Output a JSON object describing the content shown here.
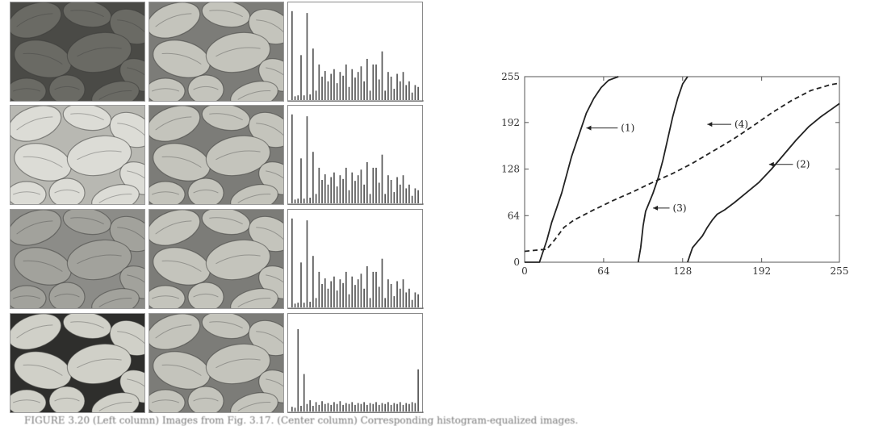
{
  "figure": {
    "image_rows": [
      {
        "input_tone": "dark",
        "input_bg": "#4a4a46",
        "input_bean": "#6a6a64",
        "output_bg": "#7c7c78",
        "output_bean": "#c4c4bc"
      },
      {
        "input_tone": "light",
        "input_bg": "#b8b8b2",
        "input_bean": "#dcdcd6",
        "output_bg": "#7c7c78",
        "output_bean": "#c4c4bc"
      },
      {
        "input_tone": "low-contrast",
        "input_bg": "#8c8c88",
        "input_bean": "#a2a29c",
        "output_bg": "#7c7c78",
        "output_bean": "#c4c4bc"
      },
      {
        "input_tone": "high-contrast",
        "input_bg": "#2e2e2c",
        "input_bean": "#d0d0c8",
        "output_bg": "#7c7c78",
        "output_bean": "#c4c4bc"
      }
    ],
    "histograms": [
      [
        0.95,
        0.04,
        0.05,
        0.48,
        0.05,
        0.93,
        0.06,
        0.55,
        0.1,
        0.38,
        0.25,
        0.31,
        0.2,
        0.28,
        0.33,
        0.18,
        0.3,
        0.26,
        0.38,
        0.14,
        0.33,
        0.24,
        0.3,
        0.36,
        0.2,
        0.44,
        0.1,
        0.38,
        0.38,
        0.22,
        0.52,
        0.1,
        0.3,
        0.25,
        0.12,
        0.28,
        0.2,
        0.3,
        0.16,
        0.2,
        0.08,
        0.16,
        0.14
      ],
      [
        0.95,
        0.04,
        0.05,
        0.48,
        0.05,
        0.93,
        0.06,
        0.55,
        0.1,
        0.38,
        0.25,
        0.31,
        0.2,
        0.28,
        0.33,
        0.18,
        0.3,
        0.26,
        0.38,
        0.14,
        0.33,
        0.24,
        0.3,
        0.36,
        0.2,
        0.44,
        0.1,
        0.38,
        0.38,
        0.22,
        0.52,
        0.1,
        0.3,
        0.25,
        0.12,
        0.28,
        0.2,
        0.3,
        0.16,
        0.2,
        0.08,
        0.16,
        0.14
      ],
      [
        0.95,
        0.04,
        0.05,
        0.48,
        0.05,
        0.93,
        0.06,
        0.55,
        0.1,
        0.38,
        0.25,
        0.31,
        0.2,
        0.28,
        0.33,
        0.18,
        0.3,
        0.26,
        0.38,
        0.14,
        0.33,
        0.24,
        0.3,
        0.36,
        0.2,
        0.44,
        0.1,
        0.38,
        0.38,
        0.22,
        0.52,
        0.1,
        0.3,
        0.25,
        0.12,
        0.28,
        0.2,
        0.3,
        0.16,
        0.2,
        0.08,
        0.16,
        0.14
      ],
      [
        0.05,
        0.04,
        0.88,
        0.06,
        0.4,
        0.08,
        0.12,
        0.06,
        0.1,
        0.07,
        0.11,
        0.08,
        0.09,
        0.07,
        0.1,
        0.08,
        0.11,
        0.07,
        0.09,
        0.08,
        0.1,
        0.07,
        0.09,
        0.08,
        0.1,
        0.07,
        0.09,
        0.08,
        0.1,
        0.07,
        0.09,
        0.08,
        0.1,
        0.07,
        0.09,
        0.08,
        0.1,
        0.07,
        0.09,
        0.08,
        0.1,
        0.09,
        0.45
      ]
    ],
    "caption": "FIGURE 3.20 (Left column) Images from Fig. 3.17. (Center column) Corresponding histogram-equalized images."
  },
  "chart_data": {
    "type": "line",
    "title": "",
    "xlabel": "",
    "ylabel": "",
    "xlim": [
      0,
      255
    ],
    "ylim": [
      0,
      255
    ],
    "xticks": [
      "0",
      "64",
      "128",
      "192",
      "255"
    ],
    "yticks": [
      "0",
      "64",
      "128",
      "192",
      "255"
    ],
    "grid": false,
    "series": [
      {
        "label": "(1)",
        "style": "solid",
        "x": [
          0,
          12,
          14,
          18,
          22,
          24,
          26,
          30,
          34,
          38,
          42,
          46,
          50,
          56,
          62,
          68,
          76
        ],
        "y": [
          0,
          0,
          10,
          30,
          55,
          65,
          75,
          95,
          120,
          145,
          165,
          185,
          205,
          225,
          240,
          250,
          255
        ]
      },
      {
        "label": "(2)",
        "style": "solid",
        "x": [
          132,
          134,
          136,
          140,
          144,
          148,
          152,
          156,
          162,
          170,
          180,
          190,
          200,
          210,
          220,
          230,
          240,
          250,
          255
        ],
        "y": [
          0,
          10,
          20,
          28,
          36,
          48,
          58,
          66,
          72,
          82,
          96,
          110,
          128,
          148,
          168,
          186,
          200,
          212,
          218
        ]
      },
      {
        "label": "(3)",
        "style": "solid",
        "x": [
          92,
          94,
          96,
          98,
          100,
          104,
          108,
          112,
          116,
          120,
          124,
          128,
          132
        ],
        "y": [
          0,
          20,
          50,
          70,
          78,
          95,
          115,
          140,
          170,
          200,
          225,
          245,
          255
        ]
      },
      {
        "label": "(4)",
        "style": "dashed",
        "x": [
          0,
          18,
          24,
          32,
          40,
          56,
          72,
          88,
          104,
          120,
          136,
          152,
          168,
          184,
          200,
          216,
          232,
          248,
          255
        ],
        "y": [
          15,
          18,
          30,
          48,
          58,
          72,
          85,
          97,
          110,
          122,
          136,
          152,
          168,
          186,
          205,
          222,
          236,
          244,
          246
        ]
      }
    ],
    "annotations": [
      {
        "text": "(1)",
        "series": "(1)"
      },
      {
        "text": "(2)",
        "series": "(2)"
      },
      {
        "text": "(3)",
        "series": "(3)"
      },
      {
        "text": "(4)",
        "series": "(4)"
      }
    ]
  }
}
